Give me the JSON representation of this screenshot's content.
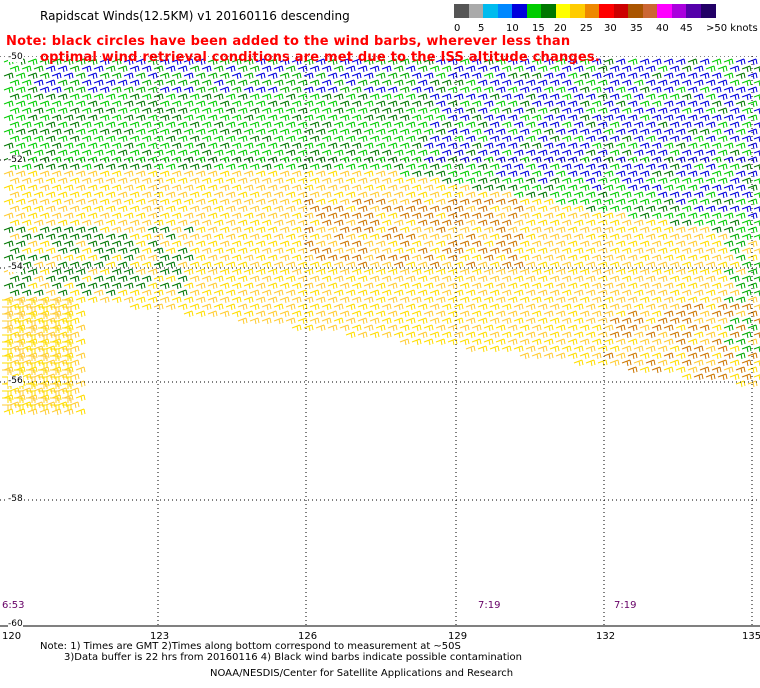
{
  "title": "Rapidscat Winds(12.5KM) v1 20160116 descending",
  "note_line1": "Note: black circles have been added to the wind barbs, wherever less than",
  "note_line2": "optimal wind retrieval conditions are met due to the ISS altitude changes.",
  "legend": {
    "colors": [
      "#555555",
      "#aaaaaa",
      "#00bbee",
      "#0088ff",
      "#0000dd",
      "#00cc00",
      "#007700",
      "#ffff00",
      "#ffcc00",
      "#ee8800",
      "#ff0000",
      "#cc0000",
      "#aa5500",
      "#cc6633",
      "#ff00ff",
      "#aa00dd",
      "#5500aa",
      "#220066"
    ],
    "labels": [
      "0",
      "5",
      "10",
      "15",
      "20",
      "25",
      "30",
      "35",
      "40",
      "45",
      ">50 knots"
    ]
  },
  "latitudes": [
    "-50",
    "-52",
    "-54",
    "-56",
    "-58",
    "-60"
  ],
  "longitudes": [
    "120",
    "123",
    "126",
    "129",
    "132",
    "135"
  ],
  "times": [
    "6:53",
    "7:19",
    "7:19"
  ],
  "footer": {
    "line1": "Note: 1) Times are GMT 2)Times along bottom correspond to measurement at ~50S",
    "line2": "3)Data buffer is 22 hrs from 20160116 4) Black wind barbs indicate possible contamination",
    "line3": "NOAA/NESDIS/Center for Satellite Applications and Research"
  },
  "map_data": {
    "lat_range": [
      -60,
      -50
    ],
    "lon_range": [
      120,
      135
    ],
    "pass_edge_south": [
      [
        121.5,
        -56.4
      ],
      [
        135,
        -56.0
      ]
    ],
    "speed_zones": [
      {
        "name": "blue",
        "knots": 15
      },
      {
        "name": "green",
        "knots": 20
      },
      {
        "name": "yellow",
        "knots": 25
      },
      {
        "name": "orange",
        "knots": 30
      }
    ]
  }
}
